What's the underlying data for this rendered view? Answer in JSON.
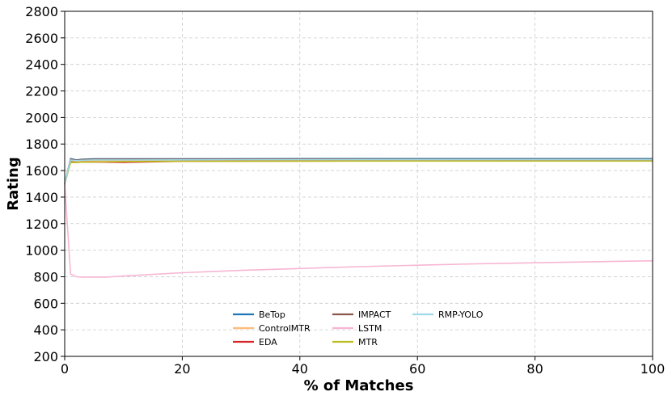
{
  "chart_data": {
    "type": "line",
    "title": "",
    "xlabel": "% of Matches",
    "ylabel": "Rating",
    "xlim": [
      0,
      100
    ],
    "ylim": [
      200,
      2800
    ],
    "xticks": [
      "0",
      "20",
      "40",
      "60",
      "80",
      "100"
    ],
    "yticks": [
      "200",
      "400",
      "600",
      "800",
      "1000",
      "1200",
      "1400",
      "1600",
      "1800",
      "2000",
      "2200",
      "2400",
      "2600",
      "2800"
    ],
    "grid": true,
    "legend_position": "lower-center",
    "series": [
      {
        "name": "BeTop",
        "color": "#1f77b4",
        "x": [
          0,
          1,
          2,
          3,
          5,
          10,
          20,
          40,
          60,
          80,
          100
        ],
        "y": [
          1500,
          1690,
          1680,
          1685,
          1688,
          1688,
          1688,
          1690,
          1690,
          1690,
          1690
        ]
      },
      {
        "name": "ControlMTR",
        "color": "#ffbb78",
        "x": [
          0,
          1,
          2,
          3,
          5,
          10,
          20,
          40,
          60,
          80,
          100
        ],
        "y": [
          1500,
          1670,
          1668,
          1670,
          1672,
          1673,
          1675,
          1677,
          1678,
          1678,
          1679
        ]
      },
      {
        "name": "EDA",
        "color": "#d62728",
        "x": [
          0,
          1,
          2,
          3,
          5,
          10,
          20,
          40,
          60,
          80,
          100
        ],
        "y": [
          1500,
          1665,
          1662,
          1664,
          1665,
          1662,
          1670,
          1672,
          1674,
          1675,
          1676
        ]
      },
      {
        "name": "IMPACT",
        "color": "#8c564b",
        "x": [
          0,
          1,
          2,
          3,
          5,
          10,
          20,
          40,
          60,
          80,
          100
        ],
        "y": [
          1500,
          1685,
          1678,
          1682,
          1685,
          1686,
          1685,
          1687,
          1686,
          1686,
          1686
        ]
      },
      {
        "name": "LSTM",
        "color": "#f7b6d2",
        "x": [
          0,
          1,
          2,
          3,
          5,
          7,
          10,
          20,
          30,
          40,
          50,
          60,
          70,
          80,
          90,
          100
        ],
        "y": [
          1500,
          820,
          800,
          797,
          798,
          797,
          805,
          830,
          848,
          862,
          876,
          887,
          897,
          905,
          913,
          920
        ]
      },
      {
        "name": "MTR",
        "color": "#bcbd22",
        "x": [
          0,
          1,
          2,
          3,
          5,
          10,
          20,
          40,
          60,
          80,
          100
        ],
        "y": [
          1500,
          1660,
          1662,
          1663,
          1665,
          1668,
          1670,
          1671,
          1672,
          1672,
          1672
        ]
      },
      {
        "name": "RMP-YOLO",
        "color": "#9edae5",
        "x": [
          0,
          1,
          2,
          3,
          5,
          10,
          20,
          40,
          60,
          80,
          100
        ],
        "y": [
          1500,
          1680,
          1675,
          1678,
          1680,
          1680,
          1681,
          1682,
          1682,
          1682,
          1682
        ]
      }
    ]
  }
}
